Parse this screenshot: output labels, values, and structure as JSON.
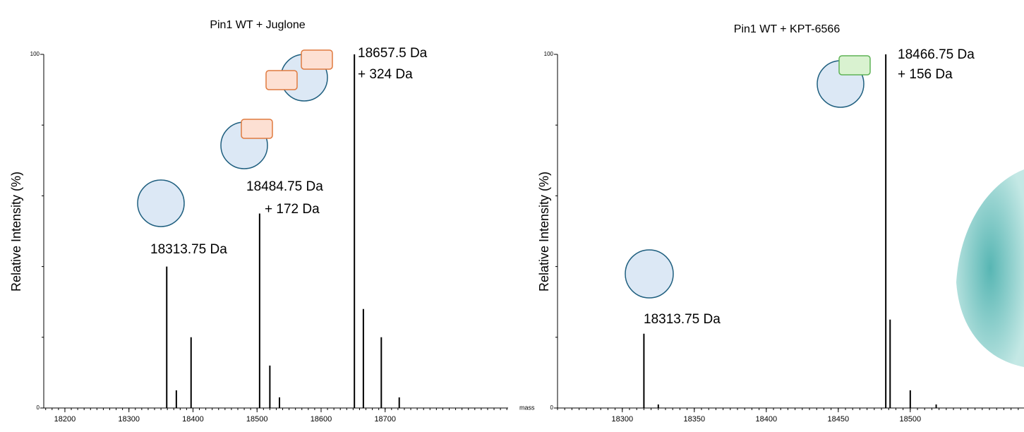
{
  "chart_data": [
    {
      "type": "stem",
      "title": "Pin1 WT + Juglone",
      "y_label": "Relative Intensity (%)",
      "x_label": "mass",
      "x": [
        18359,
        18374,
        18397,
        18504,
        18520,
        18535,
        18652,
        18666,
        18694,
        18722
      ],
      "values": [
        40,
        5,
        20,
        55,
        12,
        3,
        100,
        28,
        20,
        3
      ],
      "color": "#000000",
      "xlim": [
        18167,
        18892
      ],
      "ylim": [
        0,
        100
      ],
      "xticks": [
        18200,
        18300,
        18400,
        18500,
        18600,
        18700
      ],
      "yticks": [
        0,
        100
      ],
      "annotations": [
        "18313.75 Da",
        "18484.75 Da",
        "+ 172 Da",
        "18657.5 Da",
        "+ 324 Da"
      ]
    },
    {
      "type": "stem",
      "title": "Pin1 WT + KPT-6566",
      "y_label": "Relative Intensity (%)",
      "x": [
        18315,
        18325,
        18483,
        18486,
        18500,
        18518
      ],
      "values": [
        21,
        1,
        100,
        25,
        5,
        1
      ],
      "color": "#000000",
      "xlim": [
        18255,
        18579
      ],
      "ylim": [
        0,
        100
      ],
      "xticks": [
        18300,
        18350,
        18400,
        18450,
        18500
      ],
      "yticks": [
        0,
        100
      ],
      "annotations": [
        "18313.75 Da",
        "18466.75 Da",
        "+ 156 Da"
      ]
    }
  ]
}
